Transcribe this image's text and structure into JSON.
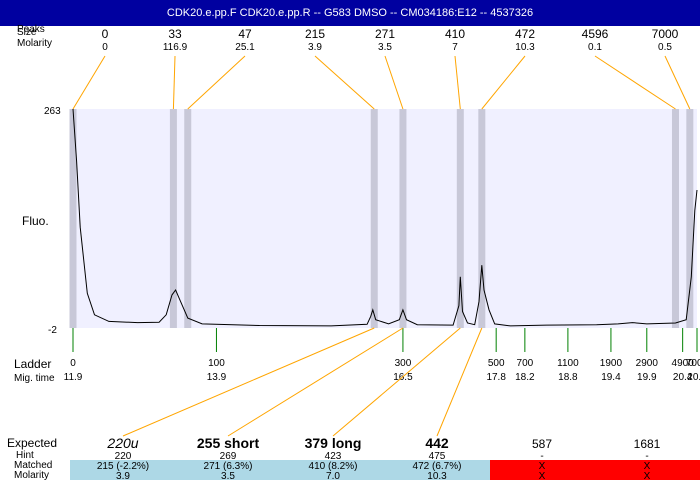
{
  "header": {
    "title": "CDK20.e.pp.F   CDK20.e.pp.R -- G583 DMSO -- CM034186:E12 -- 4537326"
  },
  "row_labels": {
    "peaks_label": "Peaks",
    "size_label": "Size",
    "molarity_label": "Molarity",
    "fluo_label": "Fluo.",
    "ladder_label": "Ladder",
    "migtime_label": "Mig. time",
    "expected_label": "Expected",
    "hint_label": "Hint",
    "matched_label": "Matched",
    "molarity2_label": "Molarity"
  },
  "chart_data": {
    "type": "line",
    "title": "",
    "xlabel": "",
    "ylabel": "Fluo.",
    "ylim": [
      -2,
      263
    ],
    "y_tick_labels": [
      "263",
      "-2"
    ],
    "peaks": [
      {
        "size": "0",
        "molarity": "0",
        "x_mig": 11.9
      },
      {
        "size": "33",
        "molarity": "116.9",
        "x_mig": 13.3
      },
      {
        "size": "47",
        "molarity": "25.1",
        "x_mig": 13.5
      },
      {
        "size": "215",
        "molarity": "3.9",
        "x_mig": 16.1
      },
      {
        "size": "271",
        "molarity": "3.5",
        "x_mig": 16.5
      },
      {
        "size": "410",
        "molarity": "7",
        "x_mig": 17.3
      },
      {
        "size": "472",
        "molarity": "10.3",
        "x_mig": 17.6
      },
      {
        "size": "4596",
        "molarity": "0.1",
        "x_mig": 20.3
      },
      {
        "size": "7000",
        "molarity": "0.5",
        "x_mig": 20.5
      }
    ],
    "ladder": [
      {
        "size": "0",
        "time": "11.9",
        "x_mig": 11.9
      },
      {
        "size": "100",
        "time": "13.9",
        "x_mig": 13.9
      },
      {
        "size": "300",
        "time": "16.5",
        "x_mig": 16.5
      },
      {
        "size": "500",
        "time": "17.8",
        "x_mig": 17.8
      },
      {
        "size": "700",
        "time": "18.2",
        "x_mig": 18.2
      },
      {
        "size": "1100",
        "time": "18.8",
        "x_mig": 18.8
      },
      {
        "size": "1900",
        "time": "19.4",
        "x_mig": 19.4
      },
      {
        "size": "2900",
        "time": "19.9",
        "x_mig": 19.9
      },
      {
        "size": "4900",
        "time": "20.4",
        "x_mig": 20.4
      },
      {
        "size": "7000",
        "time": "20.6",
        "x_mig": 20.6
      }
    ],
    "xlim": [
      11.9,
      20.6
    ],
    "trace": [
      [
        11.9,
        263
      ],
      [
        11.95,
        200
      ],
      [
        12.0,
        120
      ],
      [
        12.1,
        40
      ],
      [
        12.2,
        14
      ],
      [
        12.4,
        6
      ],
      [
        12.8,
        4.5
      ],
      [
        13.1,
        5
      ],
      [
        13.2,
        14
      ],
      [
        13.28,
        38
      ],
      [
        13.33,
        44
      ],
      [
        13.4,
        30
      ],
      [
        13.5,
        10
      ],
      [
        13.7,
        3
      ],
      [
        14.5,
        1
      ],
      [
        15.5,
        0.6
      ],
      [
        16.0,
        2.5
      ],
      [
        16.05,
        12
      ],
      [
        16.08,
        20
      ],
      [
        16.12,
        8
      ],
      [
        16.3,
        3
      ],
      [
        16.45,
        8
      ],
      [
        16.5,
        20
      ],
      [
        16.55,
        8
      ],
      [
        16.7,
        2
      ],
      [
        17.2,
        1.5
      ],
      [
        17.28,
        25
      ],
      [
        17.3,
        60
      ],
      [
        17.33,
        18
      ],
      [
        17.4,
        4
      ],
      [
        17.5,
        2
      ],
      [
        17.56,
        30
      ],
      [
        17.6,
        74
      ],
      [
        17.63,
        44
      ],
      [
        17.7,
        20
      ],
      [
        17.78,
        3
      ],
      [
        18.0,
        0.5
      ],
      [
        18.5,
        1.5
      ],
      [
        19.2,
        2
      ],
      [
        19.5,
        3
      ],
      [
        19.7,
        4.5
      ],
      [
        19.9,
        3
      ],
      [
        20.3,
        4
      ],
      [
        20.45,
        8
      ],
      [
        20.52,
        60
      ],
      [
        20.57,
        140
      ],
      [
        20.6,
        165
      ]
    ],
    "highlight_bands_mig": [
      11.9,
      13.3,
      13.5,
      16.1,
      16.5,
      17.3,
      17.6,
      20.3,
      20.5
    ]
  },
  "expected_table": {
    "columns": [
      {
        "expected": "220u",
        "hint": "220",
        "matched": "215 (-2.2%)",
        "molarity": "3.9",
        "status": "ok"
      },
      {
        "expected": "255 short",
        "hint": "269",
        "matched": "271 (6.3%)",
        "molarity": "3.5",
        "status": "ok"
      },
      {
        "expected": "379 long",
        "hint": "423",
        "matched": "410 (8.2%)",
        "molarity": "7.0",
        "status": "ok"
      },
      {
        "expected": "442",
        "hint": "475",
        "matched": "472 (6.7%)",
        "molarity": "10.3",
        "status": "ok"
      },
      {
        "expected": "587",
        "hint": "-",
        "matched": "X",
        "molarity": "X",
        "status": "missing"
      },
      {
        "expected": "1681",
        "hint": "-",
        "matched": "X",
        "molarity": "X",
        "status": "missing"
      }
    ],
    "colors": {
      "ok": "#add8e6",
      "missing": "#ff0000"
    }
  },
  "colors": {
    "title_bar": "#0000a0",
    "plot_bg": "#f0f0ff",
    "band": "#c8c8d8",
    "peak_line": "#ffa500",
    "ladder_tick": "#008000",
    "trace": "#000000"
  }
}
